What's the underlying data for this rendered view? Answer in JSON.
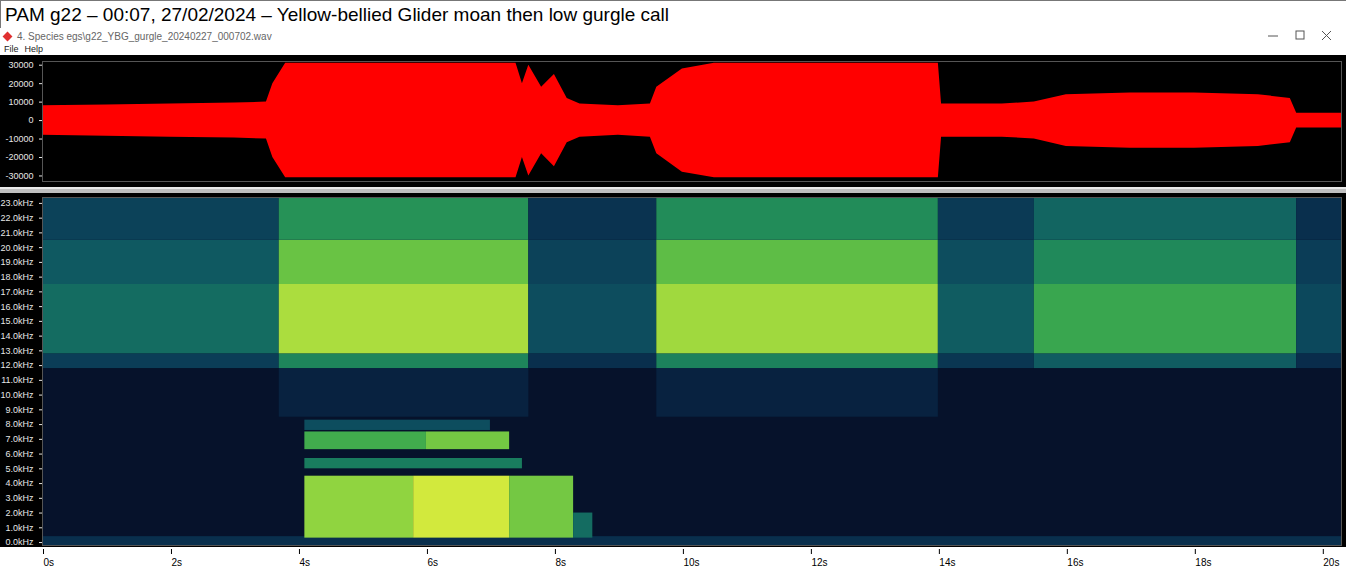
{
  "caption": "PAM g22 – 00:07, 27/02/2024 – Yellow-bellied Glider moan then low gurgle call",
  "window": {
    "title": "4. Species egs\\g22_YBG_gurgle_20240227_000702.wav",
    "menu": [
      "File",
      "Help"
    ]
  },
  "chart_data": [
    {
      "type": "area",
      "color": "#ff0000",
      "x": [
        0,
        1,
        2,
        3,
        3.5,
        3.6,
        3.8,
        7.4,
        7.5,
        7.6,
        7.8,
        8.0,
        8.2,
        8.4,
        9.0,
        9.5,
        9.6,
        10.0,
        10.5,
        14.0,
        14.05,
        15.0,
        15.5,
        16.0,
        17.0,
        18.0,
        19.0,
        19.5,
        19.6,
        20.3
      ],
      "upper": [
        8000,
        8500,
        9000,
        9500,
        10000,
        20000,
        31000,
        31000,
        20000,
        30000,
        18000,
        25000,
        12000,
        9000,
        8000,
        9000,
        18000,
        28000,
        31000,
        31000,
        9000,
        9000,
        10000,
        14000,
        15000,
        15000,
        14000,
        12000,
        4000,
        4000
      ],
      "lower": [
        -8000,
        -8500,
        -9000,
        -9500,
        -10000,
        -20000,
        -31000,
        -31000,
        -20000,
        -30000,
        -18000,
        -25000,
        -12000,
        -9000,
        -8000,
        -9000,
        -18000,
        -28000,
        -31000,
        -31000,
        -9000,
        -9000,
        -10000,
        -14000,
        -15000,
        -15000,
        -14000,
        -12000,
        -4000,
        -4000
      ],
      "xlim": [
        0,
        20.3
      ],
      "ylim": [
        -33000,
        32000
      ],
      "yticks": [
        -30000,
        -20000,
        -10000,
        0,
        10000,
        20000,
        30000
      ],
      "tick_labels": "y"
    },
    {
      "type": "heatmap",
      "cells": [
        [
          0,
          20.3,
          -0.2,
          23.4,
          0.03
        ],
        [
          0,
          20.3,
          -0.2,
          0.4,
          0.18
        ],
        [
          3.7,
          7.6,
          8.5,
          11.8,
          0.12
        ],
        [
          9.6,
          14.0,
          8.5,
          11.8,
          0.12
        ],
        [
          0,
          3.7,
          11.8,
          12.8,
          0.24
        ],
        [
          0,
          3.7,
          12.8,
          17.5,
          0.4
        ],
        [
          0,
          3.7,
          17.5,
          20.5,
          0.34
        ],
        [
          0,
          3.7,
          20.5,
          23.4,
          0.26
        ],
        [
          3.7,
          7.6,
          11.8,
          12.8,
          0.48
        ],
        [
          3.7,
          7.6,
          12.8,
          17.5,
          0.8
        ],
        [
          3.7,
          7.6,
          17.5,
          20.5,
          0.68
        ],
        [
          3.7,
          7.6,
          20.5,
          23.4,
          0.52
        ],
        [
          7.6,
          9.6,
          11.8,
          12.8,
          0.18
        ],
        [
          7.6,
          9.6,
          12.8,
          17.5,
          0.3
        ],
        [
          7.6,
          9.6,
          17.5,
          20.5,
          0.26
        ],
        [
          7.6,
          9.6,
          20.5,
          23.4,
          0.2
        ],
        [
          9.6,
          14.0,
          11.8,
          12.8,
          0.47
        ],
        [
          9.6,
          14.0,
          12.8,
          17.5,
          0.78
        ],
        [
          9.6,
          14.0,
          17.5,
          20.5,
          0.66
        ],
        [
          9.6,
          14.0,
          20.5,
          23.4,
          0.5
        ],
        [
          14.0,
          15.5,
          11.8,
          12.8,
          0.21
        ],
        [
          14.0,
          15.5,
          12.8,
          17.5,
          0.35
        ],
        [
          14.0,
          15.5,
          17.5,
          20.5,
          0.3
        ],
        [
          14.0,
          15.5,
          20.5,
          23.4,
          0.23
        ],
        [
          15.5,
          19.6,
          11.8,
          12.8,
          0.35
        ],
        [
          15.5,
          19.6,
          12.8,
          17.5,
          0.58
        ],
        [
          15.5,
          19.6,
          17.5,
          20.5,
          0.49
        ],
        [
          15.5,
          19.6,
          20.5,
          23.4,
          0.38
        ],
        [
          19.6,
          20.3,
          11.8,
          12.8,
          0.17
        ],
        [
          19.6,
          20.3,
          12.8,
          17.5,
          0.28
        ],
        [
          19.6,
          20.3,
          17.5,
          20.5,
          0.24
        ],
        [
          19.6,
          20.3,
          20.5,
          23.4,
          0.18
        ],
        [
          4.1,
          5.8,
          0.3,
          4.5,
          0.75
        ],
        [
          5.8,
          7.3,
          0.3,
          4.5,
          0.9
        ],
        [
          7.3,
          8.3,
          0.3,
          4.5,
          0.7
        ],
        [
          8.3,
          8.6,
          0.3,
          2.0,
          0.4
        ],
        [
          4.1,
          7.5,
          5.0,
          5.7,
          0.45
        ],
        [
          4.1,
          6.0,
          6.3,
          7.5,
          0.6
        ],
        [
          6.0,
          7.3,
          6.3,
          7.5,
          0.7
        ],
        [
          4.1,
          7.0,
          7.6,
          8.3,
          0.3
        ]
      ],
      "zlim": [
        0,
        1
      ],
      "xlim": [
        0,
        20.3
      ],
      "xticks": [
        {
          "value": 0,
          "label": "0s"
        },
        {
          "value": 2,
          "label": "2s"
        },
        {
          "value": 4,
          "label": "4s"
        },
        {
          "value": 6,
          "label": "6s"
        },
        {
          "value": 8,
          "label": "8s"
        },
        {
          "value": 10,
          "label": "10s"
        },
        {
          "value": 12,
          "label": "12s"
        },
        {
          "value": 14,
          "label": "14s"
        },
        {
          "value": 16,
          "label": "16s"
        },
        {
          "value": 18,
          "label": "18s"
        },
        {
          "value": 20,
          "label": "20s"
        }
      ],
      "ylim": [
        -0.2,
        23.4
      ],
      "yticks": [
        {
          "value": 0,
          "label": "0.0kHz"
        },
        {
          "value": 1,
          "label": "1.0kHz"
        },
        {
          "value": 2,
          "label": "2.0kHz"
        },
        {
          "value": 3,
          "label": "3.0kHz"
        },
        {
          "value": 4,
          "label": "4.0kHz"
        },
        {
          "value": 5,
          "label": "5.0kHz"
        },
        {
          "value": 6,
          "label": "6.0kHz"
        },
        {
          "value": 7,
          "label": "7.0kHz"
        },
        {
          "value": 8,
          "label": "8.0kHz"
        },
        {
          "value": 9,
          "label": "9.0kHz"
        },
        {
          "value": 10,
          "label": "10.0kHz"
        },
        {
          "value": 11,
          "label": "11.0kHz"
        },
        {
          "value": 12,
          "label": "12.0kHz"
        },
        {
          "value": 13,
          "label": "13.0kHz"
        },
        {
          "value": 14,
          "label": "14.0kHz"
        },
        {
          "value": 15,
          "label": "15.0kHz"
        },
        {
          "value": 16,
          "label": "16.0kHz"
        },
        {
          "value": 17,
          "label": "17.0kHz"
        },
        {
          "value": 18,
          "label": "18.0kHz"
        },
        {
          "value": 19,
          "label": "19.0kHz"
        },
        {
          "value": 20,
          "label": "20.0kHz"
        },
        {
          "value": 21,
          "label": "21.0kHz"
        },
        {
          "value": 22,
          "label": "22.0kHz"
        },
        {
          "value": 23,
          "label": "23.0kHz"
        }
      ]
    }
  ]
}
